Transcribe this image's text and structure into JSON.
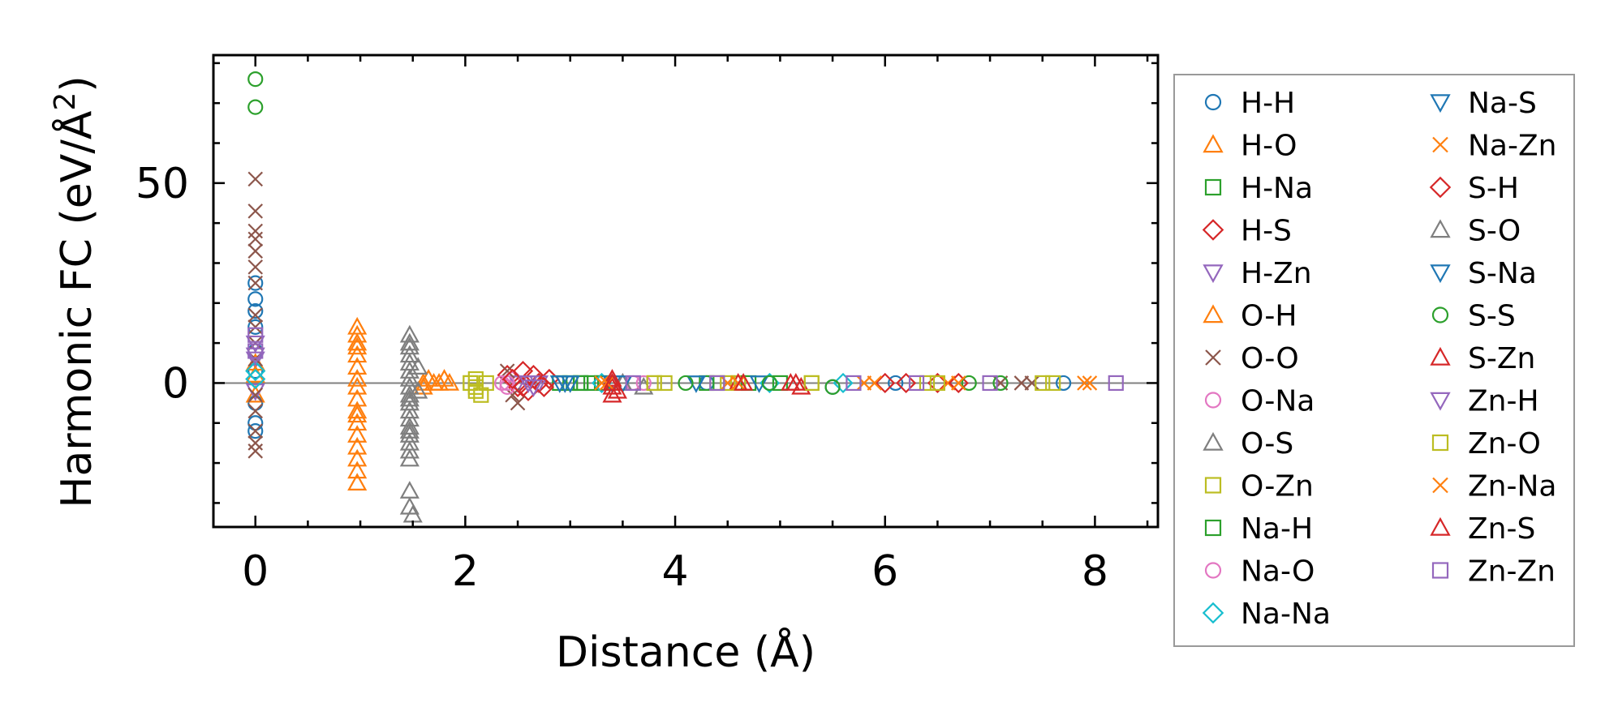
{
  "chart_data": {
    "type": "scatter",
    "xlabel": "Distance (Å)",
    "ylabel_main": "Harmonic FC (eV/Å",
    "ylabel_sup": "2",
    "ylabel_tail": ")",
    "xlim": [
      -0.4,
      8.6
    ],
    "ylim": [
      -36,
      82
    ],
    "xticks": [
      0,
      2,
      4,
      6,
      8
    ],
    "xtick_labels": [
      "0",
      "2",
      "4",
      "6",
      "8"
    ],
    "yticks": [
      0,
      50
    ],
    "ytick_labels": [
      "0",
      "50"
    ],
    "zero_line": true,
    "grid": false,
    "legend_position": "outside-right",
    "series": [
      {
        "name": "H-H",
        "marker": "circle",
        "color": "#1f77b4",
        "points": [
          [
            0,
            25
          ],
          [
            0,
            21
          ],
          [
            0,
            18
          ],
          [
            0,
            14
          ],
          [
            0,
            8
          ],
          [
            0,
            3
          ],
          [
            0,
            -5
          ],
          [
            0,
            -10
          ],
          [
            0,
            -12
          ],
          [
            4.3,
            0
          ],
          [
            5.5,
            -1
          ],
          [
            6.1,
            0
          ],
          [
            7.7,
            0
          ]
        ]
      },
      {
        "name": "H-O",
        "marker": "triangle-up",
        "color": "#ff7f0e",
        "points": [
          [
            0,
            5
          ],
          [
            0,
            -3
          ],
          [
            0.97,
            14
          ],
          [
            0.97,
            12
          ],
          [
            0.97,
            9
          ],
          [
            0.97,
            7
          ],
          [
            0.97,
            4
          ],
          [
            0.97,
            1
          ],
          [
            0.97,
            -1
          ],
          [
            0.97,
            -4
          ],
          [
            0.97,
            -7
          ],
          [
            0.97,
            -10
          ],
          [
            0.97,
            -13
          ],
          [
            0.97,
            -16
          ],
          [
            0.97,
            -19
          ],
          [
            0.97,
            -22
          ],
          [
            0.97,
            -25
          ],
          [
            1.6,
            0
          ],
          [
            1.65,
            1
          ],
          [
            1.7,
            0
          ],
          [
            1.75,
            0
          ],
          [
            1.85,
            0
          ]
        ]
      },
      {
        "name": "H-Na",
        "marker": "square",
        "color": "#2ca02c",
        "points": [
          [
            2.9,
            0
          ],
          [
            3.0,
            0
          ],
          [
            3.1,
            0
          ],
          [
            3.2,
            0
          ],
          [
            4.3,
            0
          ],
          [
            5.0,
            0
          ]
        ]
      },
      {
        "name": "H-S",
        "marker": "diamond",
        "color": "#d62728",
        "points": [
          [
            2.4,
            2
          ],
          [
            2.5,
            -1
          ],
          [
            2.55,
            3
          ],
          [
            2.6,
            -2
          ],
          [
            2.7,
            0
          ],
          [
            2.8,
            1
          ],
          [
            6.0,
            0
          ],
          [
            6.5,
            0
          ]
        ]
      },
      {
        "name": "H-Zn",
        "marker": "triangle-down",
        "color": "#9467bd",
        "points": [
          [
            0,
            6
          ],
          [
            0,
            -2
          ],
          [
            2.5,
            0
          ],
          [
            2.6,
            0
          ],
          [
            2.7,
            0
          ]
        ]
      },
      {
        "name": "O-H",
        "marker": "triangle-up",
        "color": "#ff7f0e",
        "points": [
          [
            0,
            2
          ],
          [
            0.97,
            10
          ],
          [
            0.97,
            -8
          ],
          [
            1.6,
            -1
          ],
          [
            1.8,
            1
          ]
        ]
      },
      {
        "name": "O-O",
        "marker": "x",
        "color": "#8c564b",
        "points": [
          [
            0,
            51
          ],
          [
            0,
            43
          ],
          [
            0,
            38
          ],
          [
            0,
            36
          ],
          [
            0,
            33
          ],
          [
            0,
            29
          ],
          [
            0,
            25
          ],
          [
            0,
            17
          ],
          [
            0,
            14
          ],
          [
            0,
            10
          ],
          [
            0,
            6
          ],
          [
            0,
            -3
          ],
          [
            0,
            -7
          ],
          [
            0,
            -12
          ],
          [
            0,
            -15
          ],
          [
            0,
            -17
          ],
          [
            2.4,
            3
          ],
          [
            2.45,
            -3
          ],
          [
            2.5,
            -5
          ],
          [
            7.1,
            0
          ],
          [
            7.3,
            0
          ],
          [
            7.4,
            0
          ]
        ]
      },
      {
        "name": "O-Na",
        "marker": "circle",
        "color": "#e377c2",
        "points": [
          [
            2.35,
            0
          ],
          [
            2.4,
            -1
          ],
          [
            2.45,
            1
          ],
          [
            3.6,
            0
          ]
        ]
      },
      {
        "name": "O-S",
        "marker": "triangle-up",
        "color": "#7f7f7f",
        "points": [
          [
            1.47,
            12
          ],
          [
            1.47,
            10
          ],
          [
            1.47,
            7
          ],
          [
            1.47,
            5
          ],
          [
            1.47,
            3
          ],
          [
            1.47,
            1
          ],
          [
            1.47,
            -1
          ],
          [
            1.47,
            -3
          ],
          [
            1.47,
            -5
          ],
          [
            1.47,
            -7
          ],
          [
            1.47,
            -9
          ],
          [
            1.47,
            -11
          ],
          [
            1.47,
            -13
          ],
          [
            1.47,
            -15
          ],
          [
            1.47,
            -17
          ],
          [
            1.47,
            -19
          ],
          [
            1.47,
            -27
          ],
          [
            1.47,
            -31
          ],
          [
            1.5,
            -33
          ],
          [
            1.55,
            4
          ],
          [
            1.55,
            -2
          ],
          [
            3.7,
            -1
          ],
          [
            3.5,
            0
          ]
        ]
      },
      {
        "name": "O-Zn",
        "marker": "square",
        "color": "#bcbd22",
        "points": [
          [
            2.05,
            0
          ],
          [
            2.1,
            1
          ],
          [
            2.1,
            -2
          ],
          [
            2.15,
            -3
          ],
          [
            2.2,
            0
          ],
          [
            3.8,
            0
          ],
          [
            3.9,
            0
          ],
          [
            4.4,
            0
          ],
          [
            4.6,
            0
          ],
          [
            5.3,
            0
          ],
          [
            6.4,
            0
          ],
          [
            7.5,
            0
          ]
        ]
      },
      {
        "name": "Na-H",
        "marker": "square",
        "color": "#2ca02c",
        "points": [
          [
            3.1,
            0
          ],
          [
            3.3,
            0
          ],
          [
            4.7,
            0
          ]
        ]
      },
      {
        "name": "Na-O",
        "marker": "circle",
        "color": "#e377c2",
        "points": [
          [
            2.4,
            0
          ],
          [
            3.7,
            0
          ]
        ]
      },
      {
        "name": "Na-Na",
        "marker": "diamond",
        "color": "#17becf",
        "points": [
          [
            0,
            3
          ],
          [
            0,
            1
          ],
          [
            3.3,
            0
          ],
          [
            4.9,
            0
          ],
          [
            5.6,
            0
          ]
        ]
      },
      {
        "name": "Na-S",
        "marker": "triangle-down",
        "color": "#1f77b4",
        "points": [
          [
            2.9,
            0
          ],
          [
            3.0,
            0
          ],
          [
            3.4,
            0
          ],
          [
            4.2,
            0
          ]
        ]
      },
      {
        "name": "Na-Zn",
        "marker": "x",
        "color": "#ff7f0e",
        "points": [
          [
            3.3,
            0
          ],
          [
            4.5,
            0
          ],
          [
            5.8,
            0
          ],
          [
            6.6,
            0
          ],
          [
            7.9,
            0
          ]
        ]
      },
      {
        "name": "S-H",
        "marker": "diamond",
        "color": "#d62728",
        "points": [
          [
            2.45,
            1
          ],
          [
            2.55,
            -1
          ],
          [
            2.65,
            2
          ],
          [
            2.75,
            -1
          ],
          [
            6.2,
            0
          ],
          [
            6.7,
            0
          ]
        ]
      },
      {
        "name": "S-O",
        "marker": "triangle-up",
        "color": "#7f7f7f",
        "points": [
          [
            1.47,
            9
          ],
          [
            1.47,
            -4
          ],
          [
            1.47,
            -12
          ],
          [
            3.5,
            0
          ]
        ]
      },
      {
        "name": "S-Na",
        "marker": "triangle-down",
        "color": "#1f77b4",
        "points": [
          [
            2.95,
            0
          ],
          [
            3.5,
            0
          ],
          [
            4.8,
            0
          ]
        ]
      },
      {
        "name": "S-S",
        "marker": "circle",
        "color": "#2ca02c",
        "points": [
          [
            0,
            76
          ],
          [
            0,
            69
          ],
          [
            4.1,
            0
          ],
          [
            4.9,
            0
          ],
          [
            5.5,
            -1
          ],
          [
            6.8,
            0
          ],
          [
            7.1,
            0
          ]
        ]
      },
      {
        "name": "S-Zn",
        "marker": "triangle-up",
        "color": "#d62728",
        "points": [
          [
            3.4,
            1
          ],
          [
            3.4,
            -1
          ],
          [
            3.4,
            -3
          ],
          [
            4.6,
            0
          ],
          [
            5.1,
            0
          ],
          [
            5.2,
            -1
          ]
        ]
      },
      {
        "name": "Zn-H",
        "marker": "triangle-down",
        "color": "#9467bd",
        "points": [
          [
            0,
            10
          ],
          [
            0,
            7
          ],
          [
            2.6,
            0
          ],
          [
            2.65,
            -1
          ]
        ]
      },
      {
        "name": "Zn-O",
        "marker": "square",
        "color": "#bcbd22",
        "points": [
          [
            2.05,
            0
          ],
          [
            2.1,
            -1
          ],
          [
            3.8,
            0
          ],
          [
            4.5,
            0
          ],
          [
            5.3,
            0
          ],
          [
            6.5,
            0
          ],
          [
            7.6,
            0
          ]
        ]
      },
      {
        "name": "Zn-Na",
        "marker": "x",
        "color": "#ff7f0e",
        "points": [
          [
            3.35,
            0
          ],
          [
            4.6,
            0
          ],
          [
            5.9,
            0
          ],
          [
            6.7,
            0
          ],
          [
            7.95,
            0
          ]
        ]
      },
      {
        "name": "Zn-S",
        "marker": "triangle-up",
        "color": "#d62728",
        "points": [
          [
            3.4,
            0
          ],
          [
            3.45,
            -2
          ],
          [
            4.65,
            0
          ],
          [
            5.15,
            0
          ]
        ]
      },
      {
        "name": "Zn-Zn",
        "marker": "square",
        "color": "#9467bd",
        "points": [
          [
            0,
            12
          ],
          [
            0,
            8
          ],
          [
            3.6,
            0
          ],
          [
            4.4,
            0
          ],
          [
            5.7,
            0
          ],
          [
            6.3,
            0
          ],
          [
            7.0,
            0
          ],
          [
            8.2,
            0
          ]
        ]
      }
    ]
  }
}
